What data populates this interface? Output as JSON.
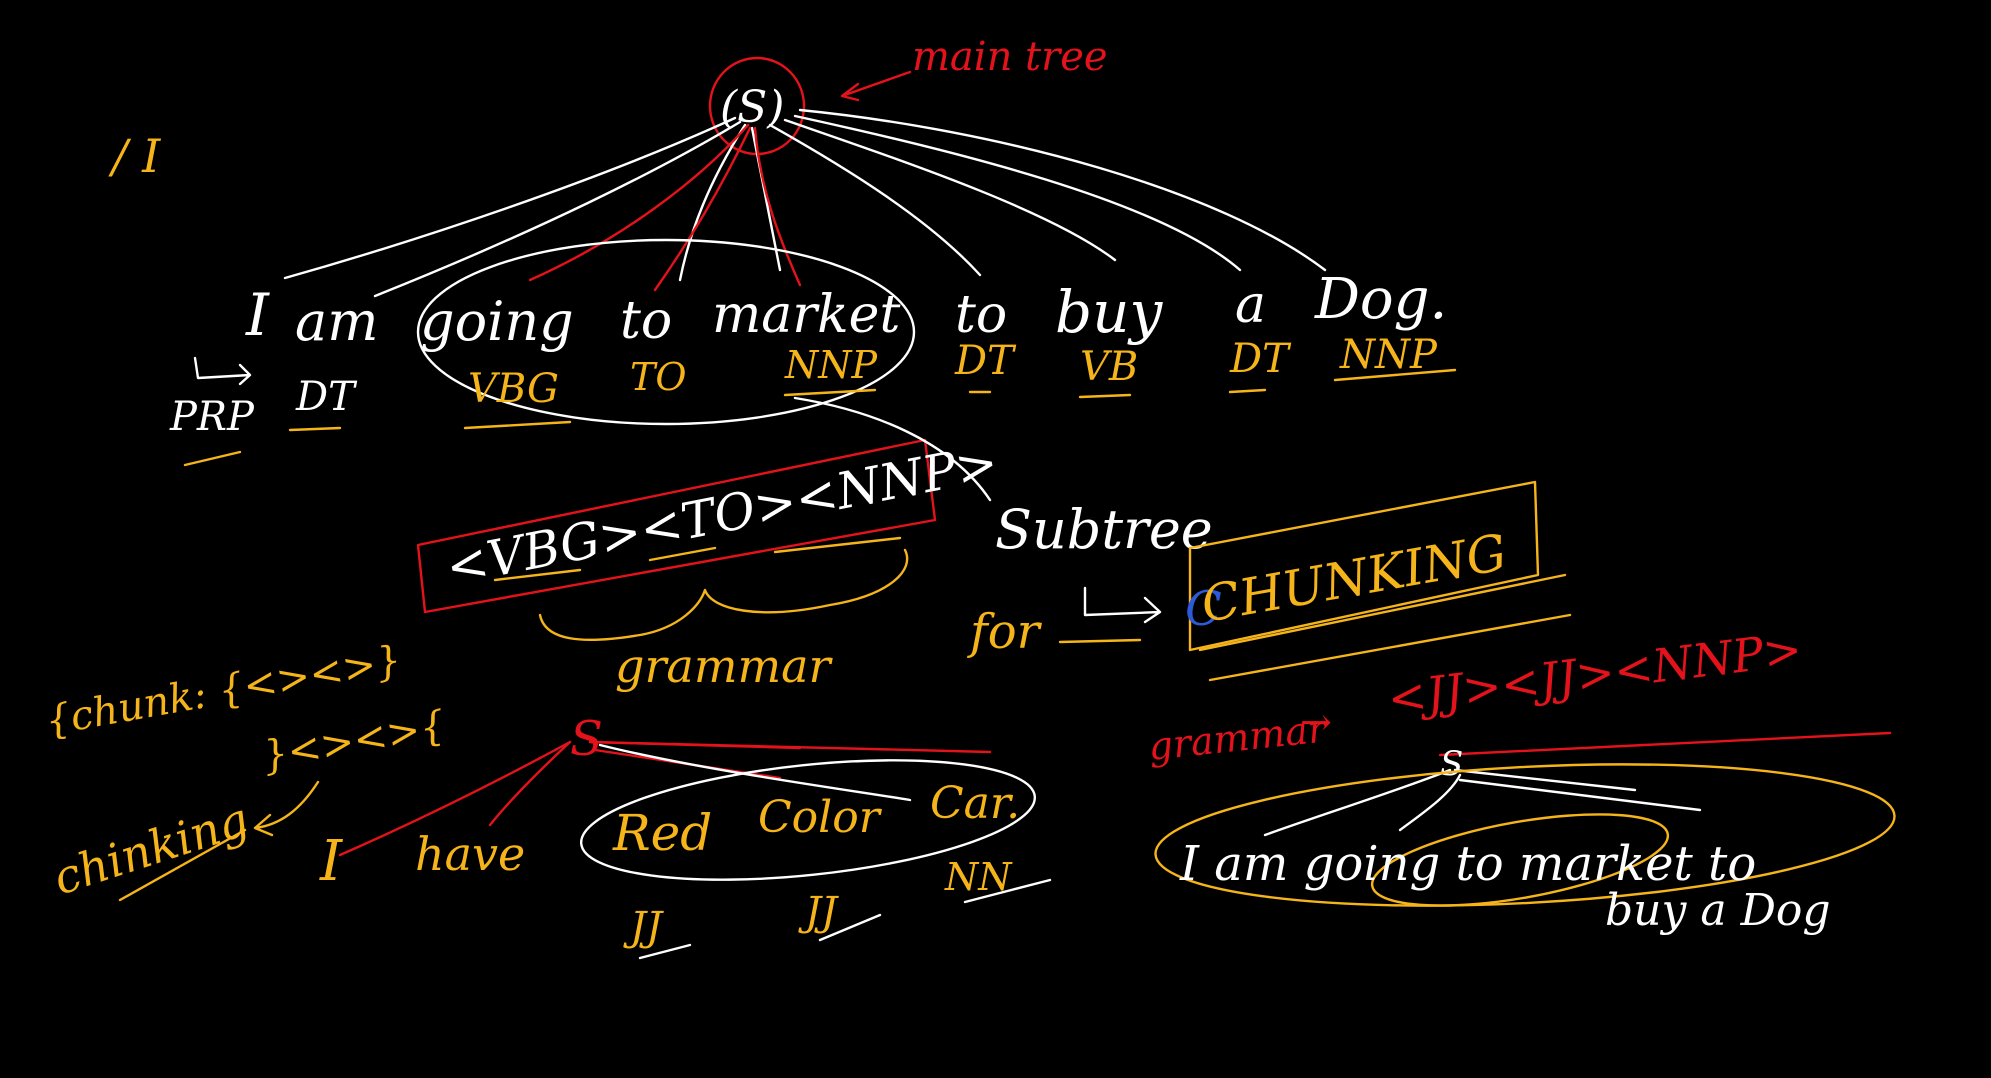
{
  "main_tree": {
    "root": "(S)",
    "label": "main tree"
  },
  "top_left_mark": "/ I",
  "sentence_1": {
    "words": [
      "I",
      "am",
      "going",
      "to",
      "market",
      "to",
      "buy",
      "a",
      "Dog."
    ],
    "tags": [
      "PRP",
      "DT",
      "VBG",
      "TO",
      "NNP",
      "DT",
      "VB",
      "DT",
      "NNP"
    ]
  },
  "chunk_pattern": "<VBG><TO><NNP>",
  "subtree_label": "Subtree",
  "for_label": "for",
  "chunking_label": "CHUNKING",
  "grammar_label": "grammar",
  "chunk_rule": "{chunk: {<><>}",
  "chink_rule": "}<><>{",
  "chinking_label": "chinking",
  "sentence_2": {
    "root": "S",
    "words": [
      "I",
      "have",
      "Red",
      "Color",
      "Car."
    ],
    "tags": [
      "JJ",
      "JJ",
      "NN"
    ]
  },
  "grammar_rule": {
    "label": "grammar",
    "pattern": "<JJ><JJ><NNP>"
  },
  "sentence_3": {
    "root": "S",
    "line1": "I am going to market to",
    "line2": "buy a Dog"
  },
  "colors": {
    "background": "#000000",
    "white_ink": "#ffffff",
    "yellow_ink": "#f5b51a",
    "red_ink": "#e3121b",
    "blue_ink": "#2b5bd7"
  }
}
